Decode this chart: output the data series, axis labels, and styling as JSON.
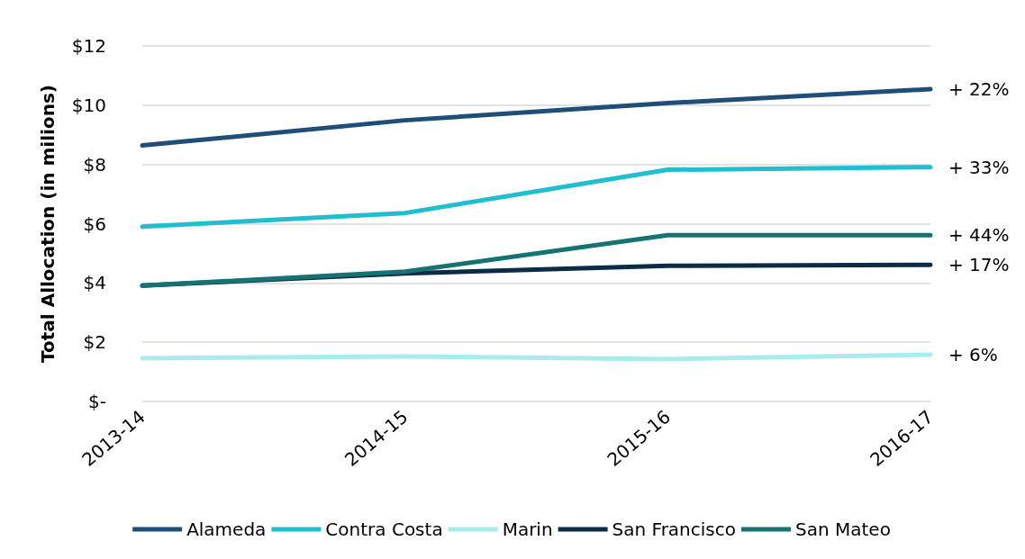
{
  "chart_data": {
    "type": "line",
    "ylabel": "Total Allocation (in milions)",
    "categories": [
      "2013-14",
      "2014-15",
      "2015-16",
      "2016-17"
    ],
    "series": [
      {
        "name": "Alameda",
        "color": "#1f4e79",
        "values": [
          8.64,
          9.49,
          10.07,
          10.54
        ]
      },
      {
        "name": "Contra Costa",
        "color": "#1fbfcf",
        "values": [
          5.9,
          6.36,
          7.82,
          7.91
        ]
      },
      {
        "name": "Marin",
        "color": "#a8ecee",
        "values": [
          1.46,
          1.52,
          1.43,
          1.58
        ]
      },
      {
        "name": "San Francisco",
        "color": "#0d2a47",
        "values": [
          3.91,
          4.32,
          4.58,
          4.61
        ]
      },
      {
        "name": "San Mateo",
        "color": "#167373",
        "values": [
          3.91,
          4.38,
          5.61,
          5.61
        ]
      }
    ],
    "ylim": [
      0,
      12
    ],
    "yticks": [
      {
        "value": 0,
        "label": "$-"
      },
      {
        "value": 2,
        "label": "$2"
      },
      {
        "value": 4,
        "label": "$4"
      },
      {
        "value": 6,
        "label": "$6"
      },
      {
        "value": 8,
        "label": "$8"
      },
      {
        "value": 10,
        "label": "$10"
      },
      {
        "value": 12,
        "label": "$12"
      }
    ],
    "annotations": [
      {
        "text": "+ 22%",
        "x": "2016-17",
        "y": 10.54
      },
      {
        "text": "+ 33%",
        "x": "2016-17",
        "y": 7.91
      },
      {
        "text": "+ 44%",
        "x": "2016-17",
        "y": 5.61
      },
      {
        "text": "+ 17%",
        "x": "2016-17",
        "y": 4.61
      },
      {
        "text": "+ 6%",
        "x": "2016-17",
        "y": 1.58
      }
    ],
    "grid": "y",
    "legend": "bottom",
    "marker": "none",
    "line_style": "solid"
  }
}
